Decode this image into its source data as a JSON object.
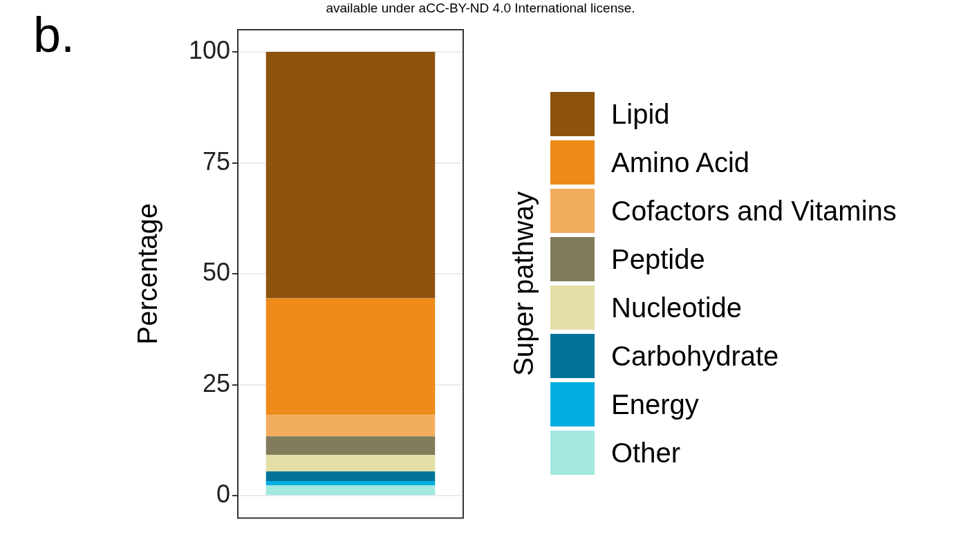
{
  "chart_data": {
    "type": "bar",
    "title": "b.",
    "annotations": [
      "available under aCC-BY-ND 4.0 International license."
    ],
    "ylabel": "Percentage",
    "legend_title": "Super pathway",
    "categories": [
      null
    ],
    "stacked": true,
    "ylim": [
      -5,
      105
    ],
    "yticks": [
      0,
      25,
      50,
      75,
      100
    ],
    "grid": true,
    "legend": "right",
    "series": [
      {
        "name": "Other",
        "color": "#a2e8e1",
        "values": [
          2.4
        ]
      },
      {
        "name": "Energy",
        "color": "#03ade2",
        "values": [
          0.9
        ]
      },
      {
        "name": "Carbohydrate",
        "color": "#03739a",
        "values": [
          2.2
        ]
      },
      {
        "name": "Nucleotide",
        "color": "#e3dfa6",
        "values": [
          3.7
        ]
      },
      {
        "name": "Peptide",
        "color": "#817c5b",
        "values": [
          4.2
        ]
      },
      {
        "name": "Cofactors and Vitamins",
        "color": "#f2ae5e",
        "values": [
          4.8
        ]
      },
      {
        "name": "Amino Acid",
        "color": "#ee8b19",
        "values": [
          26.3
        ]
      },
      {
        "name": "Lipid",
        "color": "#8c520e",
        "values": [
          55.5
        ]
      }
    ]
  }
}
